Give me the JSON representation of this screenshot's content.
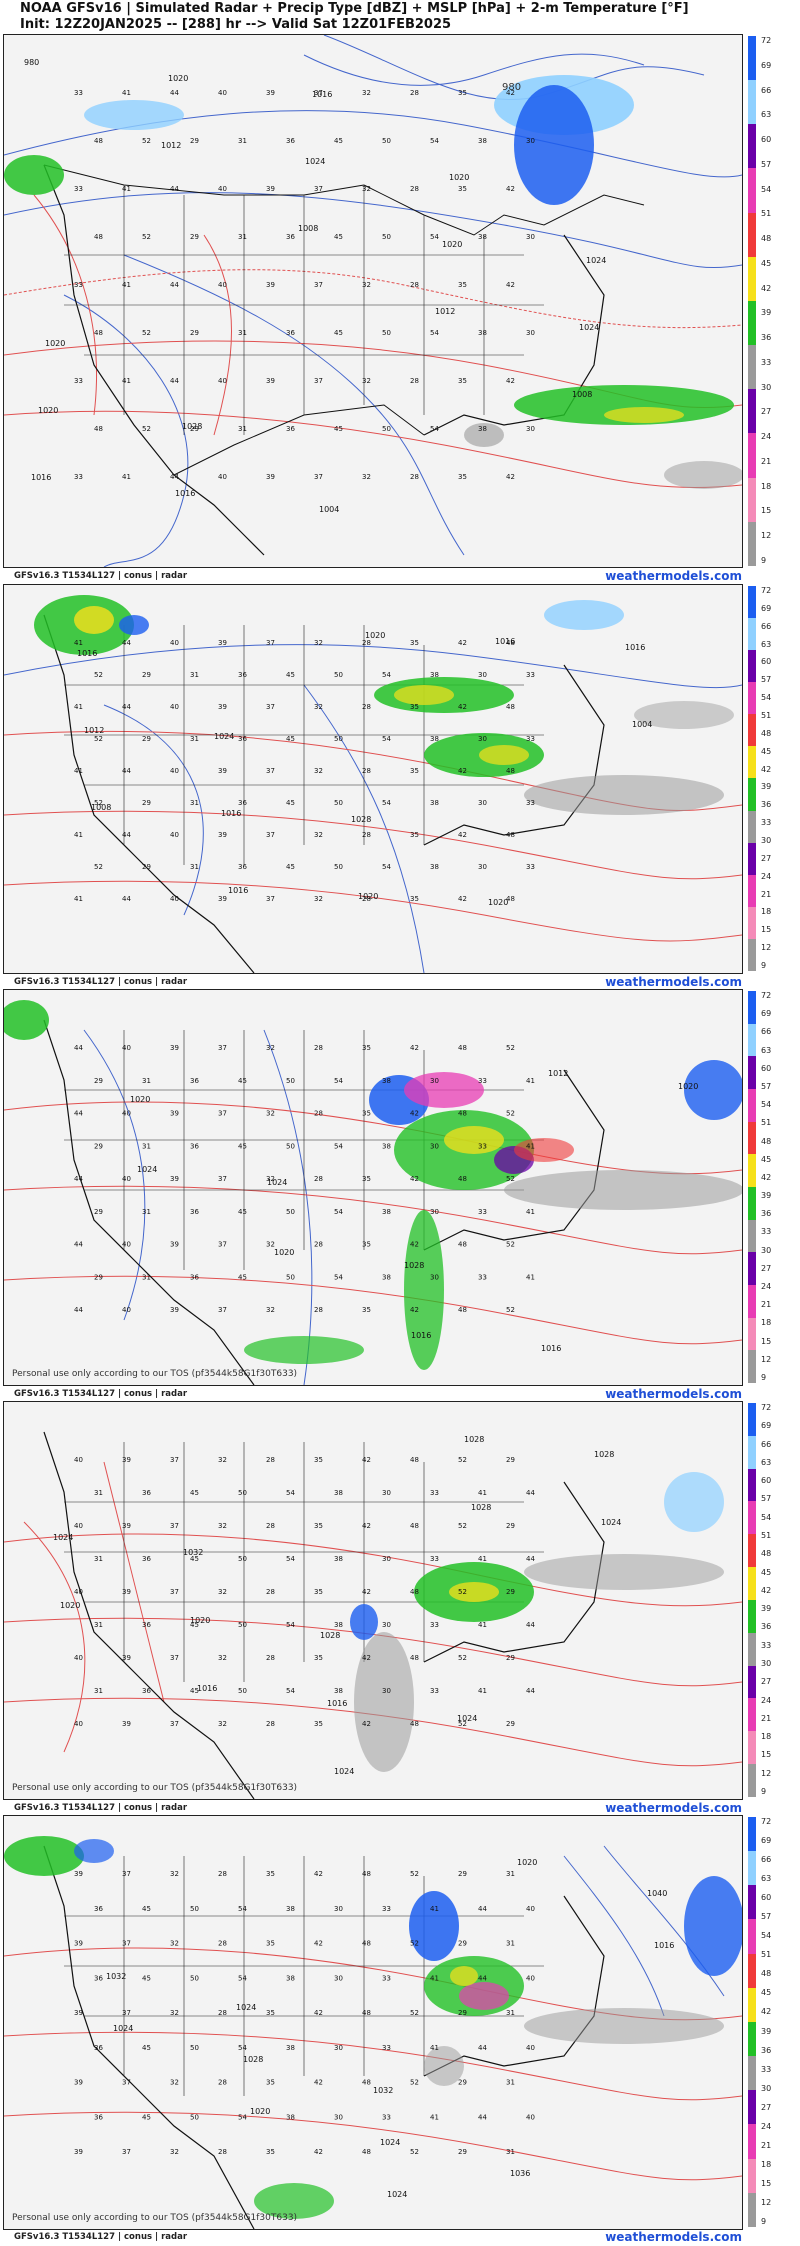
{
  "header": {
    "title": "NOAA GFSv16 | Simulated Radar + Precip Type [dBZ] + MSLP [hPa] + 2-m Temperature [°F]",
    "subtitle": "Init: 12Z20JAN2025 -- [288] hr --> Valid Sat 12Z01FEB2025"
  },
  "footer": {
    "model_label": "GFSv16.3 T1534L127 | conus | radar",
    "brand": "weathermodels.com"
  },
  "tos_notice": "Personal use only according to our TOS (pf3544k58G1f30T633)",
  "colorbar": {
    "ticks": [
      "72",
      "69",
      "66",
      "63",
      "60",
      "57",
      "54",
      "51",
      "48",
      "45",
      "42",
      "39",
      "36",
      "33",
      "30",
      "27",
      "24",
      "21",
      "18",
      "15",
      "12",
      "9"
    ],
    "colors": {
      "rain_high": "#6a00a8",
      "rain_mid": "#f03a3a",
      "rain_low": "#f6e01a",
      "rain_light": "#22c026",
      "gray": "#9a9a9a",
      "snow": "#1c5ef0",
      "snow_light": "#8fd0ff",
      "mix": "#e83cb4",
      "freezing": "#f48bb8"
    }
  },
  "panels": [
    {
      "id": "panel-1",
      "isobar_labels": [
        "980",
        "1012",
        "1008",
        "1012",
        "1008",
        "1016",
        "1020",
        "1024",
        "1020",
        "1024",
        "1020",
        "1016",
        "1016",
        "1020",
        "1024",
        "1020",
        "1028",
        "1004"
      ],
      "temp_labels": [
        "33",
        "41",
        "44",
        "40",
        "39",
        "37",
        "32",
        "28",
        "35",
        "42",
        "48",
        "52",
        "29",
        "31",
        "36",
        "45",
        "50",
        "54",
        "38",
        "30"
      ],
      "show_tos": false
    },
    {
      "id": "panel-2",
      "isobar_labels": [
        "1016",
        "1024",
        "1028",
        "1020",
        "1016",
        "1012",
        "1016",
        "1020",
        "1016",
        "1004",
        "1008",
        "1016",
        "1020"
      ],
      "temp_labels": [
        "33",
        "41",
        "44",
        "40",
        "39",
        "37",
        "32",
        "28",
        "35",
        "42",
        "48",
        "52",
        "29",
        "31",
        "36",
        "45",
        "50",
        "54",
        "38",
        "30"
      ],
      "show_tos": false
    },
    {
      "id": "panel-3",
      "isobar_labels": [
        "1020",
        "1024",
        "1028",
        "1016",
        "1020",
        "1024",
        "1020",
        "1016",
        "1012"
      ],
      "temp_labels": [
        "33",
        "41",
        "44",
        "40",
        "39",
        "37",
        "32",
        "28",
        "35",
        "42",
        "48",
        "52",
        "29",
        "31",
        "36",
        "45",
        "50",
        "54",
        "38",
        "30"
      ],
      "show_tos": true
    },
    {
      "id": "panel-4",
      "isobar_labels": [
        "1032",
        "1028",
        "1024",
        "1028",
        "1024",
        "1020",
        "1016",
        "1028",
        "1024",
        "1020",
        "1016",
        "1024",
        "1028"
      ],
      "temp_labels": [
        "33",
        "41",
        "44",
        "40",
        "39",
        "37",
        "32",
        "28",
        "35",
        "42",
        "48",
        "52",
        "29",
        "31",
        "36",
        "45",
        "50",
        "54",
        "38",
        "30"
      ],
      "show_tos": true
    },
    {
      "id": "panel-5",
      "isobar_labels": [
        "1024",
        "1032",
        "1036",
        "1040",
        "1032",
        "1028",
        "1024",
        "1020",
        "1016",
        "1024",
        "1020",
        "1024"
      ],
      "temp_labels": [
        "33",
        "41",
        "44",
        "40",
        "39",
        "37",
        "32",
        "28",
        "35",
        "42",
        "48",
        "52",
        "29",
        "31",
        "36",
        "45",
        "50",
        "54",
        "38",
        "30"
      ],
      "show_tos": true
    }
  ]
}
